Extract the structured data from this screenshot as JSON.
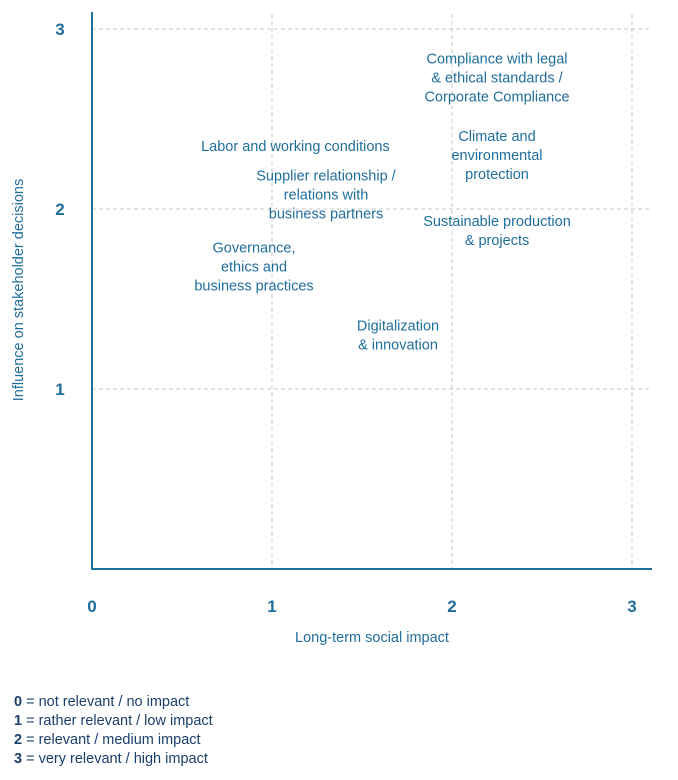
{
  "chart_data": {
    "type": "scatter",
    "title": "",
    "xlabel": "Long-term social impact",
    "ylabel": "Influence on stakeholder decisions",
    "xlim": [
      0,
      3
    ],
    "ylim": [
      0,
      3
    ],
    "xticks": [
      "0",
      "1",
      "2",
      "3"
    ],
    "yticks": [
      "1",
      "2",
      "3"
    ],
    "grid": true,
    "colors": {
      "axis": "#1f6e9c",
      "text": "#1f6e9c",
      "tick": "#1f6e9c",
      "grid": "#c8c8c8"
    },
    "points": [
      {
        "label": "Compliance with legal & ethical standards / Corporate Compliance",
        "lines": [
          "Compliance with legal",
          "& ethical standards /",
          "Corporate Compliance"
        ],
        "x": 2.25,
        "y": 2.73
      },
      {
        "label": "Climate and environmental protection",
        "lines": [
          "Climate and",
          "environmental",
          "protection"
        ],
        "x": 2.25,
        "y": 2.3
      },
      {
        "label": "Labor and working conditions",
        "lines": [
          "Labor and working conditions"
        ],
        "x": 1.13,
        "y": 2.35
      },
      {
        "label": "Supplier relationship / relations with business partners",
        "lines": [
          "Supplier relationship /",
          "relations with",
          "business partners"
        ],
        "x": 1.3,
        "y": 2.08
      },
      {
        "label": "Sustainable production & projects",
        "lines": [
          "Sustainable production",
          "& projects"
        ],
        "x": 2.25,
        "y": 1.88
      },
      {
        "label": "Governance, ethics and business practices",
        "lines": [
          "Governance,",
          "ethics and",
          "business practices"
        ],
        "x": 0.9,
        "y": 1.68
      },
      {
        "label": "Digitalization & innovation",
        "lines": [
          "Digitalization",
          "& innovation"
        ],
        "x": 1.7,
        "y": 1.3
      }
    ]
  },
  "legend": [
    {
      "key": "0",
      "text": " = not relevant / no impact"
    },
    {
      "key": "1",
      "text": " = rather relevant / low impact"
    },
    {
      "key": "2",
      "text": " = relevant / medium impact"
    },
    {
      "key": "3",
      "text": " = very relevant / high impact"
    }
  ]
}
